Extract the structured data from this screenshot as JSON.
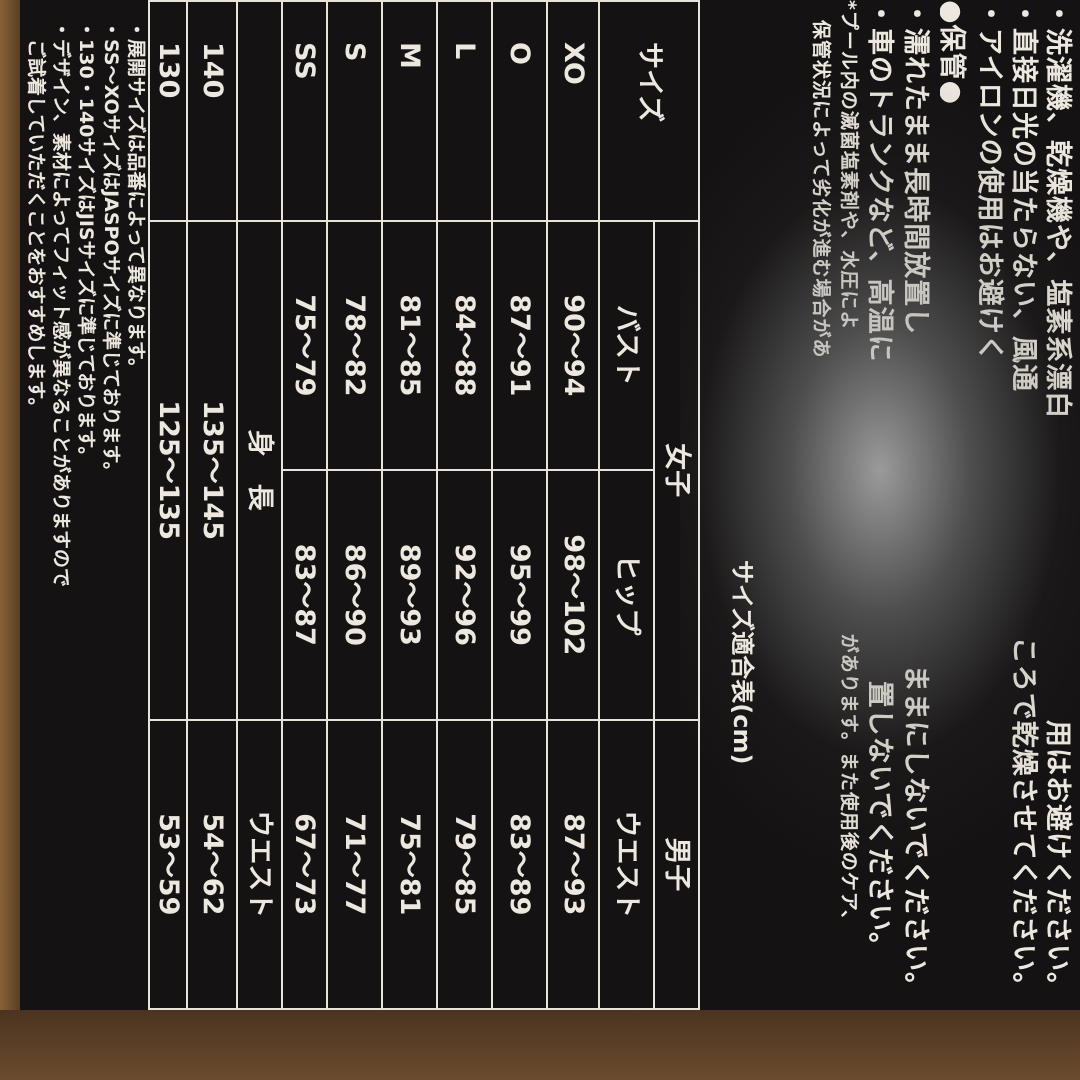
{
  "care_lines": [
    {
      "left": "・洗濯機、乾燥機や、塩素系漂白",
      "right": "用はお避けください。"
    },
    {
      "left": "・直接日光の当たらない、風通",
      "right": "ころで乾燥させてください。"
    },
    {
      "left": "・アイロンの使用はお避けく",
      "right": ""
    }
  ],
  "storage_heading": "●保管●",
  "storage_lines": [
    {
      "left": "・濡れたまま長時間放置し",
      "right": "ままにしないでください。"
    },
    {
      "left": "・車のトランクなど、高温に",
      "right": "置しないでください。"
    }
  ],
  "storage_notes": [
    {
      "left": "*プール内の滅菌塩素剤や、水圧によ",
      "right": "があります。また使用後のケア、"
    },
    {
      "left": "保管状況によって劣化が進む場合があ",
      "right": ""
    }
  ],
  "table": {
    "caption": "サイズ適合表(cm)",
    "group_female": "女子",
    "group_male": "男子",
    "col_size": "サイズ",
    "col_bust": "バスト",
    "col_hip": "ヒップ",
    "col_waist": "ウエスト",
    "rows": [
      {
        "size": "XO",
        "bust": "90～94",
        "hip": "98～102",
        "waist": "87～93"
      },
      {
        "size": "O",
        "bust": "87～91",
        "hip": "95～99",
        "waist": "83～89"
      },
      {
        "size": "L",
        "bust": "84～88",
        "hip": "92～96",
        "waist": "79～85"
      },
      {
        "size": "M",
        "bust": "81～85",
        "hip": "89～93",
        "waist": "75～81"
      },
      {
        "size": "S",
        "bust": "78～82",
        "hip": "86～90",
        "waist": "71～77"
      },
      {
        "size": "SS",
        "bust": "75～79",
        "hip": "83～87",
        "waist": "67～73"
      }
    ],
    "col_height": "身　長",
    "col_waist2": "ウエスト",
    "kids_rows": [
      {
        "size": "140",
        "height": "135～145",
        "waist": "54～62"
      },
      {
        "size": "130",
        "height": "125～135",
        "waist": "53～59"
      }
    ]
  },
  "notes": [
    "・展開サイズは品番によって異なります。",
    "・SS～XOサイズはJASPOサイズに準じております。",
    "・130・140サイズはJISサイズに準じております。",
    "・デザイン、素材によってフィット感が異なることがありますので",
    "　ご試着していただくことをおすすめします。"
  ]
}
